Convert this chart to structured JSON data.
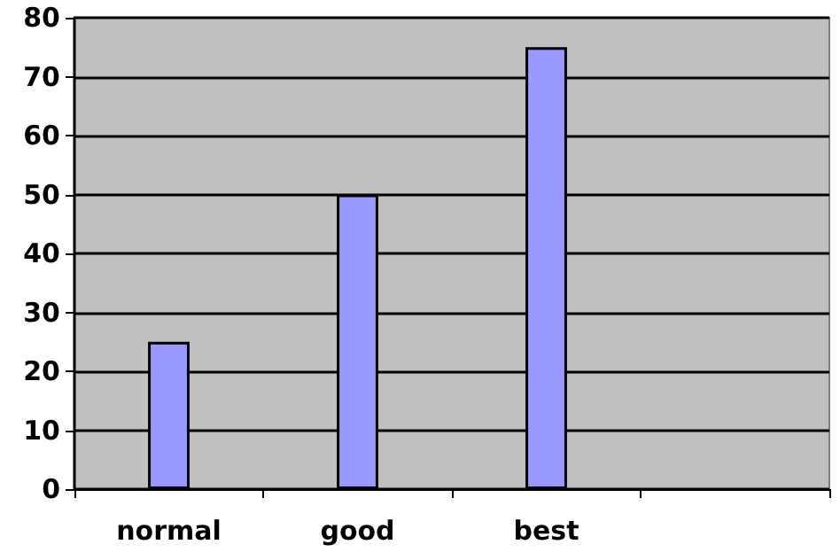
{
  "chart_data": {
    "type": "bar",
    "categories": [
      "normal",
      "good",
      "best",
      null
    ],
    "values": [
      25,
      50,
      75,
      null
    ],
    "color": "#9999ff",
    "ylim": [
      0,
      80
    ],
    "yticks": [
      0,
      10,
      20,
      30,
      40,
      50,
      60,
      70,
      80
    ],
    "grid": "y"
  }
}
